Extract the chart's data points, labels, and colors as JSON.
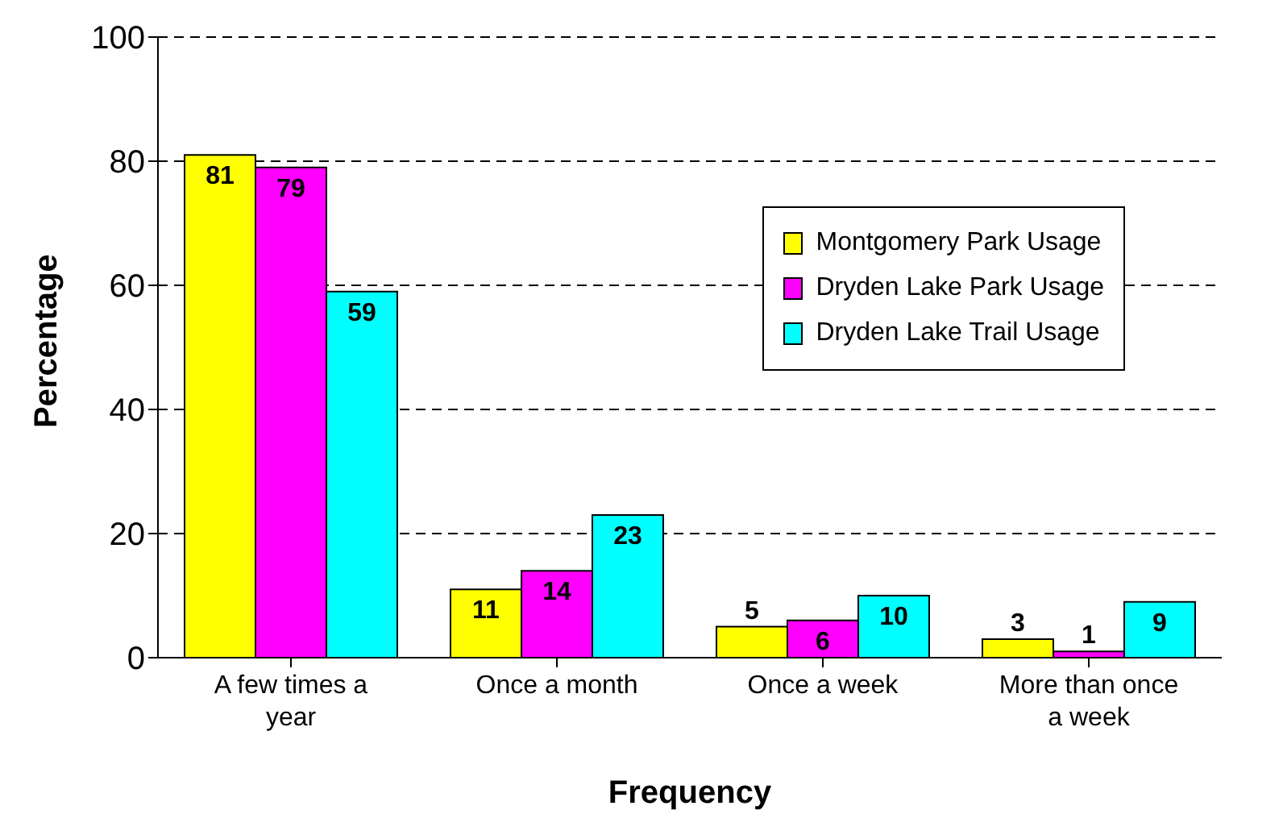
{
  "chart_data": {
    "type": "bar",
    "xlabel": "Frequency",
    "ylabel": "Percentage",
    "categories": [
      "A few times a year",
      "Once a month",
      "Once a week",
      "More than once a week"
    ],
    "series": [
      {
        "name": "Montgomery Park Usage",
        "color": "#ffff00",
        "values": [
          81,
          11,
          5,
          3
        ]
      },
      {
        "name": "Dryden Lake Park Usage",
        "color": "#ff00ff",
        "values": [
          79,
          14,
          6,
          1
        ]
      },
      {
        "name": "Dryden Lake Trail Usage",
        "color": "#00ffff",
        "values": [
          59,
          23,
          10,
          9
        ]
      }
    ],
    "ylim": [
      0,
      100
    ],
    "yticks": [
      0,
      20,
      40,
      60,
      80,
      100
    ],
    "grid": "y",
    "legend": "right",
    "data_labels": true
  }
}
